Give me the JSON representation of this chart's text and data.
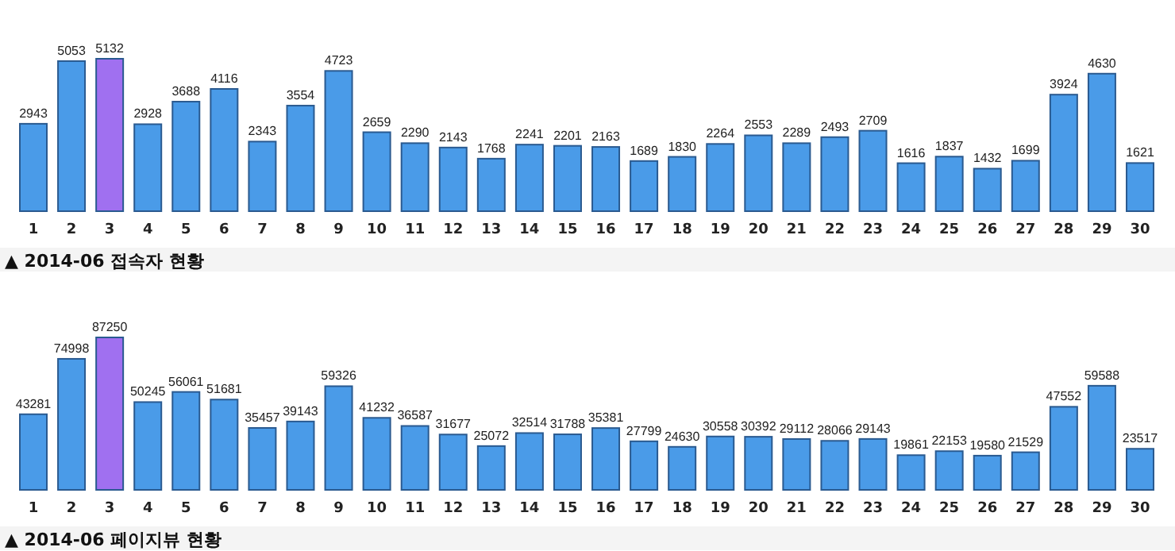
{
  "chart_data": [
    {
      "type": "bar",
      "title": "▲ 2014-06 접속자 현황",
      "categories": [
        "1",
        "2",
        "3",
        "4",
        "5",
        "6",
        "7",
        "8",
        "9",
        "10",
        "11",
        "12",
        "13",
        "14",
        "15",
        "16",
        "17",
        "18",
        "19",
        "20",
        "21",
        "22",
        "23",
        "24",
        "25",
        "26",
        "27",
        "28",
        "29",
        "30"
      ],
      "values": [
        2943,
        5053,
        5132,
        2928,
        3688,
        4116,
        2343,
        3554,
        4723,
        2659,
        2290,
        2143,
        1768,
        2241,
        2201,
        2163,
        1689,
        1830,
        2264,
        2553,
        2289,
        2493,
        2709,
        1616,
        1837,
        1432,
        1699,
        3924,
        4630,
        1621
      ],
      "colors": [
        "#4a9be8",
        "#4a9be8",
        "#a070f0",
        "#4a9be8",
        "#4a9be8",
        "#4a9be8",
        "#4a9be8",
        "#4a9be8",
        "#4a9be8",
        "#4a9be8",
        "#4a9be8",
        "#4a9be8",
        "#4a9be8",
        "#4a9be8",
        "#4a9be8",
        "#4a9be8",
        "#4a9be8",
        "#4a9be8",
        "#4a9be8",
        "#4a9be8",
        "#4a9be8",
        "#4a9be8",
        "#4a9be8",
        "#4a9be8",
        "#4a9be8",
        "#4a9be8",
        "#4a9be8",
        "#4a9be8",
        "#4a9be8",
        "#4a9be8"
      ],
      "data_labels": true
    },
    {
      "type": "bar",
      "title": "▲ 2014-06 페이지뷰 현황",
      "categories": [
        "1",
        "2",
        "3",
        "4",
        "5",
        "6",
        "7",
        "8",
        "9",
        "10",
        "11",
        "12",
        "13",
        "14",
        "15",
        "16",
        "17",
        "18",
        "19",
        "20",
        "21",
        "22",
        "23",
        "24",
        "25",
        "26",
        "27",
        "28",
        "29",
        "30"
      ],
      "values": [
        43281,
        74998,
        87250,
        50245,
        56061,
        51681,
        35457,
        39143,
        59326,
        41232,
        36587,
        31677,
        25072,
        32514,
        31788,
        35381,
        27799,
        24630,
        30558,
        30392,
        29112,
        28066,
        29143,
        19861,
        22153,
        19580,
        21529,
        47552,
        59588,
        23517
      ],
      "colors": [
        "#4a9be8",
        "#4a9be8",
        "#a070f0",
        "#4a9be8",
        "#4a9be8",
        "#4a9be8",
        "#4a9be8",
        "#4a9be8",
        "#4a9be8",
        "#4a9be8",
        "#4a9be8",
        "#4a9be8",
        "#4a9be8",
        "#4a9be8",
        "#4a9be8",
        "#4a9be8",
        "#4a9be8",
        "#4a9be8",
        "#4a9be8",
        "#4a9be8",
        "#4a9be8",
        "#4a9be8",
        "#4a9be8",
        "#4a9be8",
        "#4a9be8",
        "#4a9be8",
        "#4a9be8",
        "#4a9be8",
        "#4a9be8",
        "#4a9be8"
      ],
      "data_labels": true
    }
  ]
}
